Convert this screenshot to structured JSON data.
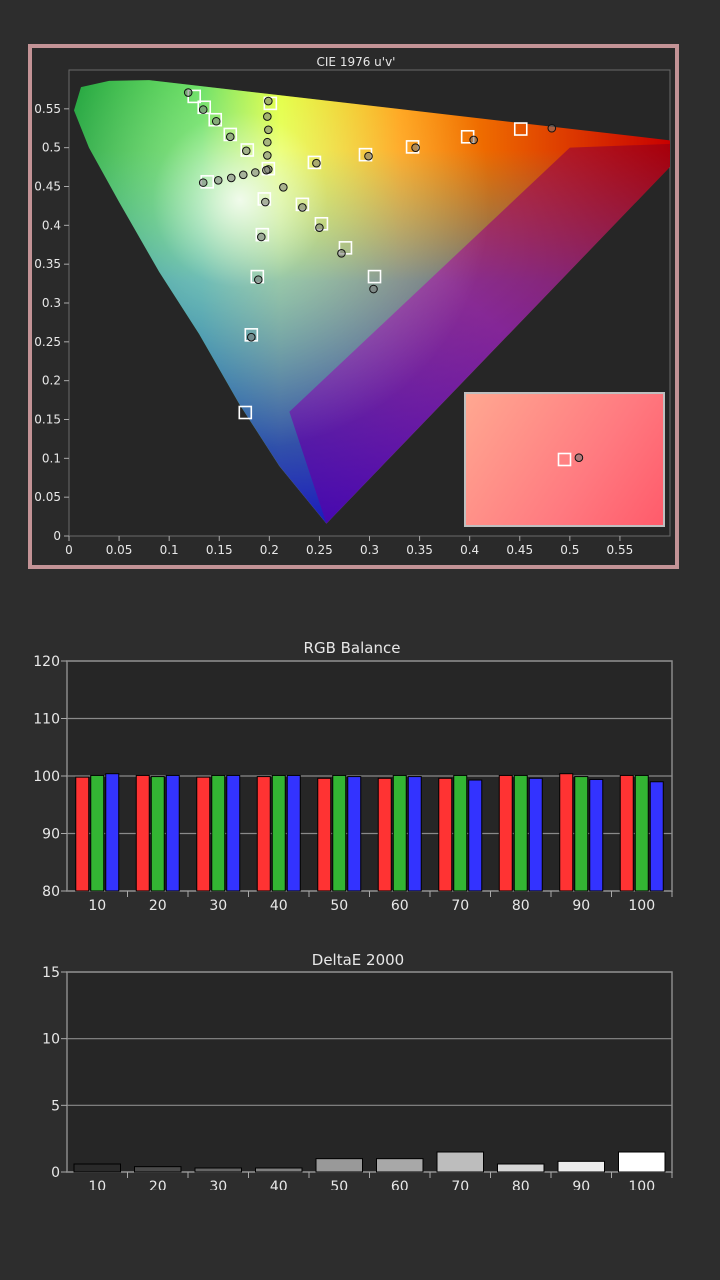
{
  "chart_data": [
    {
      "type": "scatter",
      "title": "CIE 1976 u'v'",
      "xlabel": "",
      "ylabel": "",
      "xlim": [
        0,
        0.6
      ],
      "ylim": [
        0,
        0.6
      ],
      "x_ticks": [
        "0",
        "0.05",
        "0.1",
        "0.15",
        "0.2",
        "0.25",
        "0.3",
        "0.35",
        "0.4",
        "0.45",
        "0.5",
        "0.55"
      ],
      "y_ticks": [
        "0",
        "0.05",
        "0.1",
        "0.15",
        "0.2",
        "0.25",
        "0.3",
        "0.35",
        "0.4",
        "0.45",
        "0.5",
        "0.55"
      ],
      "series": [
        {
          "marker": "square-hollow",
          "points": [
            [
              0.125,
              0.566
            ],
            [
              0.135,
              0.552
            ],
            [
              0.146,
              0.536
            ],
            [
              0.161,
              0.517
            ],
            [
              0.178,
              0.497
            ],
            [
              0.199,
              0.473
            ],
            [
              0.138,
              0.456
            ],
            [
              0.195,
              0.434
            ],
            [
              0.193,
              0.388
            ],
            [
              0.188,
              0.334
            ],
            [
              0.182,
              0.259
            ],
            [
              0.176,
              0.159
            ],
            [
              0.201,
              0.557
            ],
            [
              0.245,
              0.481
            ],
            [
              0.296,
              0.491
            ],
            [
              0.343,
              0.501
            ],
            [
              0.398,
              0.514
            ],
            [
              0.451,
              0.524
            ],
            [
              0.233,
              0.427
            ],
            [
              0.252,
              0.402
            ],
            [
              0.276,
              0.371
            ],
            [
              0.305,
              0.334
            ]
          ]
        },
        {
          "marker": "circle",
          "points": [
            [
              0.119,
              0.571
            ],
            [
              0.134,
              0.549
            ],
            [
              0.147,
              0.534
            ],
            [
              0.161,
              0.514
            ],
            [
              0.177,
              0.496
            ],
            [
              0.199,
              0.472
            ],
            [
              0.134,
              0.455
            ],
            [
              0.149,
              0.458
            ],
            [
              0.162,
              0.461
            ],
            [
              0.174,
              0.465
            ],
            [
              0.186,
              0.468
            ],
            [
              0.197,
              0.471
            ],
            [
              0.196,
              0.43
            ],
            [
              0.192,
              0.385
            ],
            [
              0.189,
              0.33
            ],
            [
              0.182,
              0.256
            ],
            [
              0.199,
              0.56
            ],
            [
              0.198,
              0.54
            ],
            [
              0.199,
              0.523
            ],
            [
              0.198,
              0.507
            ],
            [
              0.198,
              0.49
            ],
            [
              0.247,
              0.48
            ],
            [
              0.299,
              0.489
            ],
            [
              0.346,
              0.5
            ],
            [
              0.404,
              0.51
            ],
            [
              0.482,
              0.525
            ],
            [
              0.214,
              0.449
            ],
            [
              0.233,
              0.423
            ],
            [
              0.25,
              0.397
            ],
            [
              0.272,
              0.364
            ],
            [
              0.304,
              0.318
            ]
          ]
        }
      ],
      "inset": {
        "square": {
          "du": 0.0,
          "dv": 0.0
        },
        "circle": {
          "du": 0.8,
          "dv": 0.1
        }
      }
    },
    {
      "type": "bar",
      "title": "RGB Balance",
      "categories": [
        "10",
        "20",
        "30",
        "40",
        "50",
        "60",
        "70",
        "80",
        "90",
        "100"
      ],
      "ylim": [
        80,
        120
      ],
      "y_ticks": [
        "80",
        "90",
        "100",
        "110",
        "120"
      ],
      "series": [
        {
          "color": "#ff3333",
          "values": [
            99.8,
            100.1,
            99.8,
            99.9,
            99.6,
            99.6,
            99.6,
            100.1,
            100.4,
            100.1
          ]
        },
        {
          "color": "#33b533",
          "values": [
            100.1,
            99.9,
            100.1,
            100.1,
            100.1,
            100.1,
            100.1,
            100.1,
            99.9,
            100.1
          ]
        },
        {
          "color": "#3333ff",
          "values": [
            100.4,
            100.1,
            100.1,
            100.1,
            99.9,
            99.9,
            99.3,
            99.6,
            99.4,
            99.0
          ]
        }
      ]
    },
    {
      "type": "bar",
      "title": "DeltaE 2000",
      "categories": [
        "10",
        "20",
        "30",
        "40",
        "50",
        "60",
        "70",
        "80",
        "90",
        "100"
      ],
      "ylim": [
        0,
        15
      ],
      "y_ticks": [
        "0",
        "5",
        "10",
        "15"
      ],
      "values": [
        0.6,
        0.4,
        0.3,
        0.3,
        1.0,
        1.0,
        1.5,
        0.6,
        0.8,
        1.5
      ],
      "colors": [
        "#2a2a2a",
        "#4a4a4a",
        "#666666",
        "#808080",
        "#999999",
        "#a8a8a8",
        "#bdbdbd",
        "#d6d6d6",
        "#ececec",
        "#ffffff"
      ]
    }
  ]
}
